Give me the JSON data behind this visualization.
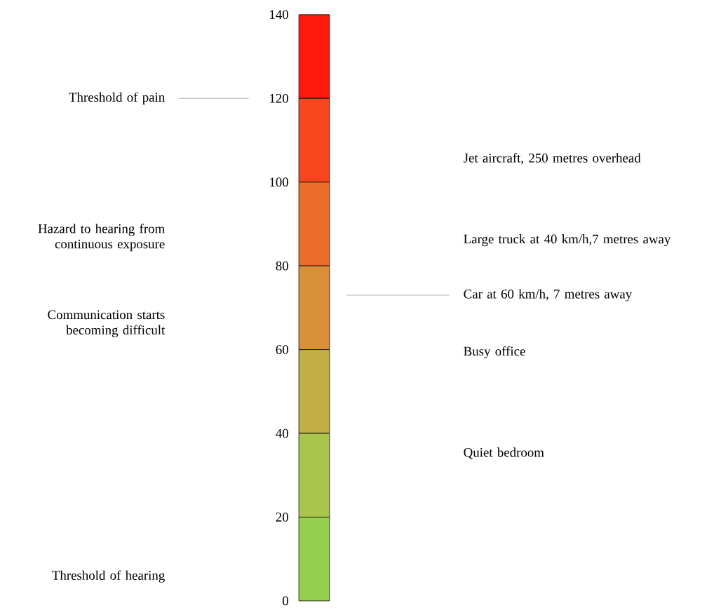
{
  "chart_data": {
    "type": "bar",
    "stacked": true,
    "categories": [
      null
    ],
    "ylim": [
      0,
      140
    ],
    "yticks": [
      0,
      20,
      40,
      60,
      80,
      100,
      120,
      140
    ],
    "tick_labels": "y",
    "series": [
      {
        "color": "#97d04f",
        "values": [
          20
        ]
      },
      {
        "color": "#a9c54b",
        "values": [
          20
        ]
      },
      {
        "color": "#c2b044",
        "values": [
          20
        ]
      },
      {
        "color": "#d99038",
        "values": [
          20
        ]
      },
      {
        "color": "#ec6c2a",
        "values": [
          20
        ]
      },
      {
        "color": "#f8461e",
        "values": [
          20
        ]
      },
      {
        "color": "#ff1a0d",
        "values": [
          20
        ]
      }
    ],
    "ref_lines": [
      {
        "axis": "y",
        "value": 120,
        "label": "Threshold of pain",
        "color": "#a0a0a0"
      },
      {
        "axis": "y",
        "value": 73,
        "label": "Car at 60 km/h, 7 metres away",
        "color": "#a0a0a0"
      }
    ],
    "annotations": [
      "Hazard to hearing from continuous exposure",
      "Communication starts becoming difficult",
      "Threshold of hearing",
      "Jet aircraft, 250 metres overhead",
      "Large truck at 40 km/h,7 metres away",
      "Busy office",
      "Quiet bedroom"
    ]
  }
}
